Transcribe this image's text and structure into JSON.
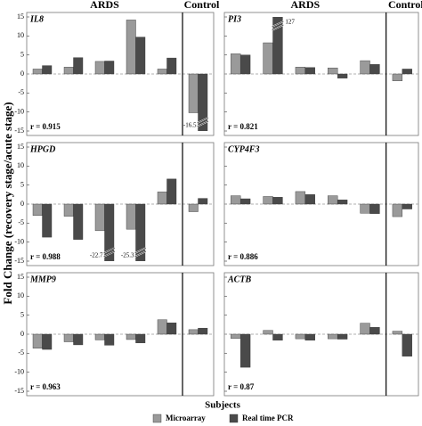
{
  "y_label": "Fold Change (recovery stage/acute stage)",
  "x_label": "Subjects",
  "chart_data": [
    {
      "type": "bar",
      "title": "IL8",
      "annotation": "r = 0.915",
      "group_labels": [
        "ARDS",
        "Control"
      ],
      "categories": [
        null,
        null,
        null,
        null,
        null,
        null
      ],
      "ylim": [
        -15,
        15
      ],
      "yticks": [
        -15,
        -10,
        -5,
        0,
        5,
        10,
        15
      ],
      "ytick_labels": true,
      "series": [
        {
          "name": "Microarray",
          "color": "#9a9a9a",
          "values": [
            1.3,
            1.8,
            3.3,
            14.2,
            1.3,
            -10.2
          ]
        },
        {
          "name": "Real time PCR",
          "color": "#4a4a4a",
          "values": [
            2.2,
            4.3,
            3.4,
            9.7,
            4.2,
            -16.5
          ],
          "value_labels": [
            null,
            null,
            null,
            null,
            null,
            "-16.5"
          ]
        }
      ]
    },
    {
      "type": "bar",
      "title": "PI3",
      "annotation": "r = 0.821",
      "group_labels": [
        "ARDS",
        "Control"
      ],
      "categories": [
        null,
        null,
        null,
        null,
        null,
        null
      ],
      "ylim": [
        -15,
        15
      ],
      "yticks": [
        -15,
        -10,
        -5,
        0,
        5,
        10,
        15
      ],
      "ytick_labels": false,
      "series": [
        {
          "name": "Microarray",
          "color": "#9a9a9a",
          "values": [
            5.3,
            8.2,
            1.8,
            1.6,
            3.5,
            -1.8
          ]
        },
        {
          "name": "Real time PCR",
          "color": "#4a4a4a",
          "values": [
            5.0,
            127,
            1.7,
            -1.1,
            2.5,
            1.3
          ],
          "value_labels": [
            null,
            "127",
            null,
            null,
            null,
            null
          ]
        }
      ]
    },
    {
      "type": "bar",
      "title": "HPGD",
      "annotation": "r = 0.988",
      "categories": [
        null,
        null,
        null,
        null,
        null,
        null
      ],
      "ylim": [
        -15,
        15
      ],
      "yticks": [
        -15,
        -10,
        -5,
        0,
        5,
        10,
        15
      ],
      "ytick_labels": true,
      "series": [
        {
          "name": "Microarray",
          "color": "#9a9a9a",
          "values": [
            -3.0,
            -3.2,
            -7.0,
            -6.6,
            3.2,
            -2.0
          ]
        },
        {
          "name": "Real time PCR",
          "color": "#4a4a4a",
          "values": [
            -8.7,
            -9.3,
            -22.7,
            -25.3,
            6.6,
            1.5
          ],
          "value_labels": [
            null,
            null,
            "-22.7",
            "-25.3",
            null,
            null
          ]
        }
      ]
    },
    {
      "type": "bar",
      "title": "CYP4F3",
      "annotation": "r = 0.886",
      "categories": [
        null,
        null,
        null,
        null,
        null,
        null
      ],
      "ylim": [
        -15,
        15
      ],
      "yticks": [
        -15,
        -10,
        -5,
        0,
        5,
        10,
        15
      ],
      "ytick_labels": false,
      "series": [
        {
          "name": "Microarray",
          "color": "#9a9a9a",
          "values": [
            2.2,
            2.0,
            3.3,
            2.2,
            -2.4,
            -3.3
          ]
        },
        {
          "name": "Real time PCR",
          "color": "#4a4a4a",
          "values": [
            1.4,
            1.8,
            2.5,
            1.1,
            -2.5,
            -1.3
          ]
        }
      ]
    },
    {
      "type": "bar",
      "title": "MMP9",
      "annotation": "r = 0.963",
      "categories": [
        null,
        null,
        null,
        null,
        null,
        null
      ],
      "ylim": [
        -15,
        15
      ],
      "yticks": [
        -15,
        -10,
        -5,
        0,
        5,
        10,
        15
      ],
      "ytick_labels": true,
      "series": [
        {
          "name": "Microarray",
          "color": "#9a9a9a",
          "values": [
            -3.7,
            -2.0,
            -1.5,
            -1.4,
            3.8,
            1.2
          ]
        },
        {
          "name": "Real time PCR",
          "color": "#4a4a4a",
          "values": [
            -4.0,
            -2.8,
            -2.9,
            -2.3,
            3.0,
            1.6
          ]
        }
      ]
    },
    {
      "type": "bar",
      "title": "ACTB",
      "annotation": "r = 0.87",
      "categories": [
        null,
        null,
        null,
        null,
        null,
        null
      ],
      "ylim": [
        -15,
        15
      ],
      "yticks": [
        -15,
        -10,
        -5,
        0,
        5,
        10,
        15
      ],
      "ytick_labels": false,
      "series": [
        {
          "name": "Microarray",
          "color": "#9a9a9a",
          "values": [
            -1.1,
            1.0,
            -1.2,
            -1.2,
            2.9,
            0.8
          ]
        },
        {
          "name": "Real time PCR",
          "color": "#4a4a4a",
          "values": [
            -8.7,
            -1.6,
            -1.6,
            -1.3,
            1.8,
            -5.8
          ]
        }
      ]
    }
  ]
}
